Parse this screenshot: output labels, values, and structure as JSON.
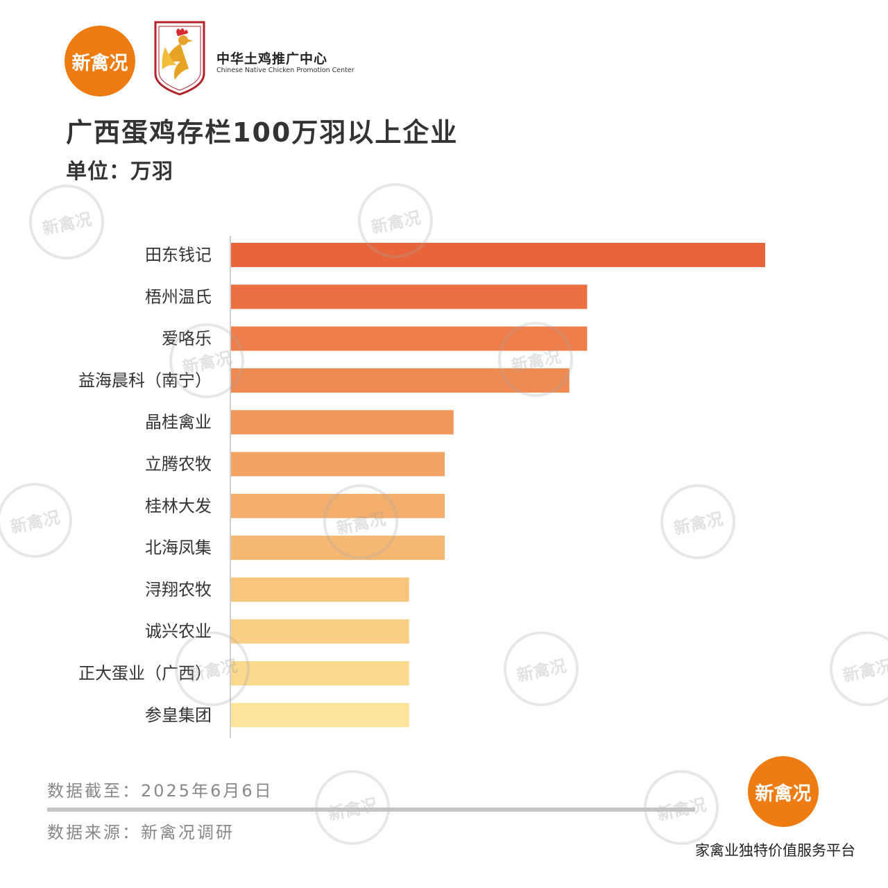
{
  "brand": {
    "logo_text": "新禽况",
    "center_name_cn": "中华土鸡推广中心",
    "center_name_en": "Chinese Native Chicken Promotion Center",
    "slogan": "家禽业独特价值服务平台"
  },
  "colors": {
    "brand_orange": "#ef7c12",
    "bar_gradient_start": "#e8643a",
    "bar_gradient_end": "#fde49a"
  },
  "chart_data": {
    "type": "bar",
    "orientation": "horizontal",
    "title": "广西蛋鸡存栏100万羽以上企业",
    "unit": "单位：万羽",
    "categories": [
      "田东钱记",
      "梧州温氏",
      "爱咯乐",
      "益海晨科（南宁）",
      "晶桂禽业",
      "立腾农牧",
      "桂林大发",
      "北海凤集",
      "浔翔农牧",
      "诚兴农业",
      "正大蛋业（广西）",
      "参皇集团"
    ],
    "values": [
      300,
      200,
      200,
      190,
      125,
      120,
      120,
      120,
      100,
      100,
      100,
      100
    ],
    "bar_colors": [
      "#e8643a",
      "#ea7044",
      "#ed7d4b",
      "#ef8a53",
      "#f0975c",
      "#f2a465",
      "#f3ae6d",
      "#f5b873",
      "#f7c57b",
      "#f9cf85",
      "#fbd98e",
      "#fde49a"
    ],
    "grid": false,
    "legend": "none"
  },
  "footer": {
    "date_note": "数据截至：2025年6月6日",
    "source_note": "数据来源：新禽况调研"
  }
}
